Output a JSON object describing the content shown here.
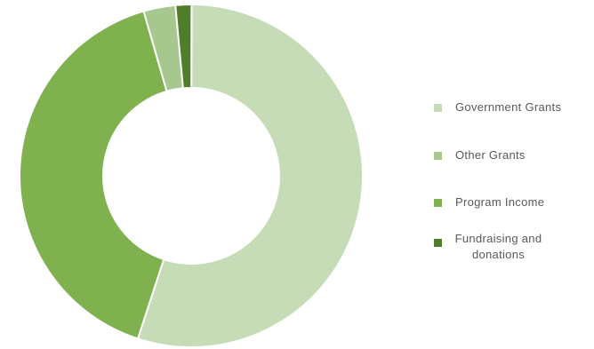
{
  "chart_data": {
    "type": "pie",
    "donut": true,
    "legend_position": "right",
    "categories": [
      "Government Grants",
      "Other Grants",
      "Program Income",
      "Fundraising and donations"
    ],
    "values": [
      55.0,
      3.0,
      40.5,
      1.5
    ],
    "unit": "percent",
    "colors": [
      "#c5dcb6",
      "#a6c88f",
      "#7fb24f",
      "#507d2a"
    ]
  }
}
